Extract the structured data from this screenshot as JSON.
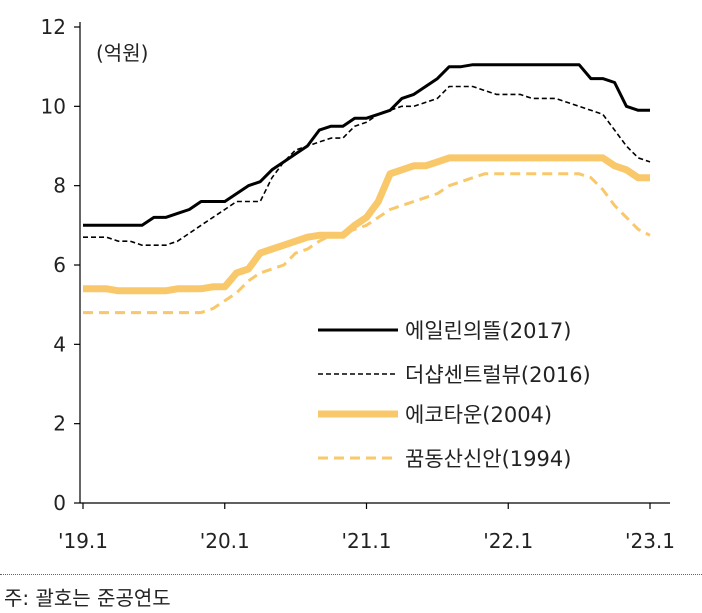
{
  "chart_data": {
    "type": "line",
    "title": "",
    "unit_label": "(억원)",
    "ylim": [
      0,
      12
    ],
    "yticks": [
      0,
      2,
      4,
      6,
      8,
      10,
      12
    ],
    "x_tick_labels": [
      "'19.1",
      "'20.1",
      "'21.1",
      "'22.1",
      "'23.1"
    ],
    "x_tick_index": [
      0,
      12,
      24,
      36,
      48
    ],
    "x": [
      "19.01",
      "19.02",
      "19.03",
      "19.04",
      "19.05",
      "19.06",
      "19.07",
      "19.08",
      "19.09",
      "19.10",
      "19.11",
      "19.12",
      "20.01",
      "20.02",
      "20.03",
      "20.04",
      "20.05",
      "20.06",
      "20.07",
      "20.08",
      "20.09",
      "20.10",
      "20.11",
      "20.12",
      "21.01",
      "21.02",
      "21.03",
      "21.04",
      "21.05",
      "21.06",
      "21.07",
      "21.08",
      "21.09",
      "21.10",
      "21.11",
      "21.12",
      "22.01",
      "22.02",
      "22.03",
      "22.04",
      "22.05",
      "22.06",
      "22.07",
      "22.08",
      "22.09",
      "22.10",
      "22.11",
      "22.12",
      "23.01"
    ],
    "legend_position": "lower-right",
    "series": [
      {
        "name": "에일린의뜰(2017)",
        "color": "#000000",
        "style": "solid",
        "values": [
          7.0,
          7.0,
          7.0,
          7.0,
          7.0,
          7.0,
          7.2,
          7.2,
          7.3,
          7.4,
          7.6,
          7.6,
          7.6,
          7.8,
          8.0,
          8.1,
          8.4,
          8.6,
          8.8,
          9.0,
          9.4,
          9.5,
          9.5,
          9.7,
          9.7,
          9.8,
          9.9,
          10.2,
          10.3,
          10.5,
          10.7,
          11.0,
          11.0,
          11.05,
          11.05,
          11.05,
          11.05,
          11.05,
          11.05,
          11.05,
          11.05,
          11.05,
          11.05,
          10.7,
          10.7,
          10.6,
          10.0,
          9.9,
          9.9
        ]
      },
      {
        "name": "더샵센트럴뷰(2016)",
        "color": "#000000",
        "style": "dashed-thin",
        "values": [
          6.7,
          6.7,
          6.7,
          6.6,
          6.6,
          6.5,
          6.5,
          6.5,
          6.6,
          6.8,
          7.0,
          7.2,
          7.4,
          7.6,
          7.6,
          7.6,
          8.2,
          8.6,
          8.9,
          9.0,
          9.1,
          9.2,
          9.2,
          9.5,
          9.6,
          9.8,
          9.9,
          10.0,
          10.0,
          10.1,
          10.2,
          10.5,
          10.5,
          10.5,
          10.4,
          10.3,
          10.3,
          10.3,
          10.2,
          10.2,
          10.2,
          10.1,
          10.0,
          9.9,
          9.8,
          9.4,
          9.0,
          8.7,
          8.6
        ]
      },
      {
        "name": "에코타운(2004)",
        "color": "#f8c86a",
        "style": "solid-thick",
        "values": [
          5.4,
          5.4,
          5.4,
          5.35,
          5.35,
          5.35,
          5.35,
          5.35,
          5.4,
          5.4,
          5.4,
          5.45,
          5.45,
          5.8,
          5.9,
          6.3,
          6.4,
          6.5,
          6.6,
          6.7,
          6.75,
          6.75,
          6.75,
          7.0,
          7.2,
          7.6,
          8.3,
          8.4,
          8.5,
          8.5,
          8.6,
          8.7,
          8.7,
          8.7,
          8.7,
          8.7,
          8.7,
          8.7,
          8.7,
          8.7,
          8.7,
          8.7,
          8.7,
          8.7,
          8.7,
          8.5,
          8.4,
          8.2,
          8.2
        ]
      },
      {
        "name": "꿈동산신안(1994)",
        "color": "#f8c86a",
        "style": "dashed-thick",
        "values": [
          4.8,
          4.8,
          4.8,
          4.8,
          4.8,
          4.8,
          4.8,
          4.8,
          4.8,
          4.8,
          4.8,
          4.9,
          5.1,
          5.3,
          5.6,
          5.8,
          5.9,
          6.0,
          6.3,
          6.4,
          6.6,
          6.75,
          6.8,
          6.9,
          7.0,
          7.2,
          7.4,
          7.5,
          7.6,
          7.7,
          7.8,
          8.0,
          8.1,
          8.2,
          8.3,
          8.3,
          8.3,
          8.3,
          8.3,
          8.3,
          8.3,
          8.3,
          8.3,
          8.2,
          7.9,
          7.5,
          7.2,
          6.9,
          6.75
        ]
      }
    ]
  },
  "note": "주: 괄호는 준공연도"
}
